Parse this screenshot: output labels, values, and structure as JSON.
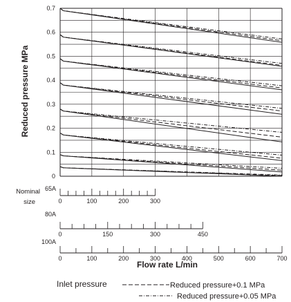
{
  "chart_data": {
    "type": "line",
    "ylabel": "Reduced pressure MPa",
    "xlabel": "Flow rate L/min",
    "ylim": [
      0,
      0.7
    ],
    "y_ticks": [
      "0",
      "0.1",
      "0.2",
      "0.3",
      "0.4",
      "0.5",
      "0.6",
      "0.7"
    ],
    "grid": true,
    "x_scale_max_flow": 700,
    "nominal_size_label": [
      "Nominal",
      "size"
    ],
    "x_scales": [
      {
        "name": "65A",
        "max": 300,
        "major_step": 100,
        "minor_step": 25,
        "labels": [
          "0",
          "100",
          "200",
          "300"
        ]
      },
      {
        "name": "80A",
        "max": 450,
        "major_step": 150,
        "minor_step": 37.5,
        "labels": [
          "0",
          "150",
          "300",
          "450"
        ]
      },
      {
        "name": "100A",
        "max": 700,
        "major_step": 100,
        "minor_step": 50,
        "labels": [
          "0",
          "100",
          "200",
          "300",
          "400",
          "500",
          "600",
          "700"
        ]
      }
    ],
    "legend_title": "Inlet pressure",
    "series": [
      {
        "name": "Reduced pressure+0.1 MPa",
        "style": "dashed",
        "curves": [
          {
            "x": [
              0,
              10,
              700
            ],
            "y": [
              0.7,
              0.69,
              0.565
            ]
          },
          {
            "x": [
              0,
              10,
              700
            ],
            "y": [
              0.59,
              0.58,
              0.462
            ]
          },
          {
            "x": [
              0,
              10,
              700
            ],
            "y": [
              0.49,
              0.48,
              0.368
            ]
          },
          {
            "x": [
              0,
              10,
              700
            ],
            "y": [
              0.39,
              0.38,
              0.272
            ]
          },
          {
            "x": [
              0,
              10,
              700
            ],
            "y": [
              0.28,
              0.272,
              0.163
            ]
          },
          {
            "x": [
              0,
              10,
              700
            ],
            "y": [
              0.18,
              0.172,
              0.075
            ]
          },
          {
            "x": [
              0,
              10,
              700
            ],
            "y": [
              0.09,
              0.085,
              0.025
            ]
          },
          {
            "x": [
              0,
              10,
              700
            ],
            "y": [
              0.04,
              0.035,
              0.003
            ]
          }
        ]
      },
      {
        "name": "Reduced pressure+0.05 MPa",
        "style": "dash-dot",
        "curves": [
          {
            "x": [
              0,
              10,
              700
            ],
            "y": [
              0.7,
              0.69,
              0.572
            ]
          },
          {
            "x": [
              0,
              10,
              700
            ],
            "y": [
              0.59,
              0.58,
              0.47
            ]
          },
          {
            "x": [
              0,
              10,
              700
            ],
            "y": [
              0.49,
              0.48,
              0.377
            ]
          },
          {
            "x": [
              0,
              10,
              700
            ],
            "y": [
              0.39,
              0.38,
              0.283
            ]
          },
          {
            "x": [
              0,
              10,
              700
            ],
            "y": [
              0.28,
              0.272,
              0.183
            ]
          },
          {
            "x": [
              0,
              10,
              700
            ],
            "y": [
              0.18,
              0.172,
              0.088
            ]
          },
          {
            "x": [
              0,
              10,
              700
            ],
            "y": [
              0.09,
              0.085,
              0.033
            ]
          },
          {
            "x": [
              0,
              10,
              700
            ],
            "y": [
              0.04,
              0.035,
              0.005
            ]
          }
        ]
      },
      {
        "name": "",
        "style": "solid",
        "curves": [
          {
            "x": [
              0,
              10,
              700
            ],
            "y": [
              0.7,
              0.69,
              0.558
            ]
          },
          {
            "x": [
              0,
              10,
              700
            ],
            "y": [
              0.59,
              0.58,
              0.458
            ]
          },
          {
            "x": [
              0,
              10,
              700
            ],
            "y": [
              0.49,
              0.48,
              0.36
            ]
          },
          {
            "x": [
              0,
              10,
              700
            ],
            "y": [
              0.39,
              0.38,
              0.258
            ]
          },
          {
            "x": [
              0,
              10,
              700
            ],
            "y": [
              0.28,
              0.272,
              0.143
            ]
          },
          {
            "x": [
              0,
              10,
              700
            ],
            "y": [
              0.18,
              0.172,
              0.065
            ]
          },
          {
            "x": [
              0,
              10,
              700
            ],
            "y": [
              0.09,
              0.085,
              0.018
            ]
          },
          {
            "x": [
              0,
              10,
              700
            ],
            "y": [
              0.04,
              0.035,
              0.0
            ]
          }
        ]
      }
    ]
  }
}
